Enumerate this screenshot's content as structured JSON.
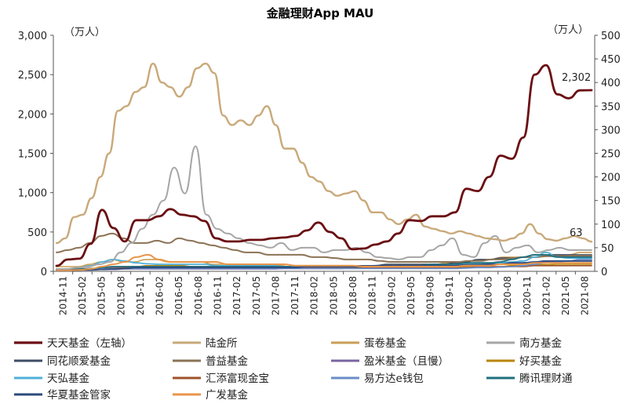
{
  "chart_data": {
    "type": "line",
    "title": "金融理财App MAU",
    "left_unit": "（万人）",
    "right_unit": "（万人）",
    "ylim_left": [
      0,
      3000
    ],
    "ylim_right": [
      0,
      500
    ],
    "yticks_left": [
      "0",
      "500",
      "1,000",
      "1,500",
      "2,000",
      "2,500",
      "3,000"
    ],
    "yticks_right": [
      "0",
      "50",
      "100",
      "150",
      "200",
      "250",
      "300",
      "350",
      "400",
      "450",
      "500"
    ],
    "x_tick_labels": [
      "2014-11",
      "2015-02",
      "2015-05",
      "2015-08",
      "2015-11",
      "2016-02",
      "2016-05",
      "2016-08",
      "2016-11",
      "2017-02",
      "2017-05",
      "2017-08",
      "2017-11",
      "2018-02",
      "2018-05",
      "2018-08",
      "2018-11",
      "2019-02",
      "2019-05",
      "2019-08",
      "2019-11",
      "2020-02",
      "2020-05",
      "2020-08",
      "2020-11",
      "2021-02",
      "2021-05",
      "2021-08"
    ],
    "annotations": [
      {
        "text": "2,302",
        "series": "天天基金（左轴）"
      },
      {
        "text": "63",
        "series": "陆金所"
      }
    ],
    "legend_placement": "bottom",
    "series": [
      {
        "name": "天天基金（左轴）",
        "axis": "left",
        "color": "#6b0f13",
        "width": 2.8,
        "values": [
          70,
          150,
          160,
          350,
          780,
          550,
          380,
          650,
          650,
          700,
          790,
          720,
          700,
          640,
          420,
          380,
          380,
          400,
          400,
          420,
          430,
          450,
          520,
          620,
          500,
          420,
          280,
          290,
          340,
          380,
          480,
          650,
          640,
          700,
          700,
          750,
          1050,
          1020,
          1200,
          1470,
          1430,
          1700,
          2500,
          2620,
          2250,
          2200,
          2300,
          2302
        ]
      },
      {
        "name": "陆金所",
        "axis": "right",
        "color": "#c9a97a",
        "width": 2.4,
        "values": [
          60,
          70,
          115,
          120,
          155,
          200,
          250,
          340,
          350,
          380,
          390,
          440,
          400,
          390,
          370,
          390,
          430,
          440,
          420,
          330,
          310,
          320,
          310,
          330,
          350,
          310,
          260,
          260,
          230,
          200,
          190,
          170,
          160,
          165,
          170,
          150,
          125,
          125,
          110,
          100,
          110,
          120,
          95,
          90,
          85,
          80,
          85,
          80,
          75,
          70,
          68,
          65,
          70,
          80,
          100,
          80,
          68,
          65,
          70,
          75,
          70,
          63
        ]
      },
      {
        "name": "蛋卷基金",
        "axis": "right",
        "color": "#c89f56",
        "width": 1.6,
        "values": [
          10,
          10,
          10,
          15,
          20,
          25,
          20,
          20,
          25,
          25,
          20,
          20,
          20,
          20,
          15,
          15,
          15,
          15,
          15,
          12,
          12,
          10,
          10,
          10,
          10,
          10,
          10,
          10,
          12,
          12,
          15,
          15,
          15,
          15,
          15,
          18,
          20,
          22,
          25,
          25,
          30,
          30,
          30,
          30,
          35,
          35,
          35,
          40,
          40
        ]
      },
      {
        "name": "南方基金",
        "axis": "right",
        "color": "#a6a6a6",
        "width": 2.0,
        "values": [
          5,
          5,
          8,
          10,
          15,
          20,
          40,
          60,
          90,
          120,
          150,
          220,
          165,
          265,
          120,
          90,
          80,
          70,
          60,
          55,
          50,
          60,
          45,
          50,
          50,
          40,
          45,
          45,
          50,
          40,
          30,
          28,
          25,
          30,
          30,
          45,
          55,
          70,
          35,
          30,
          60,
          75,
          40,
          50,
          55,
          40,
          45,
          50,
          45,
          45,
          45
        ]
      },
      {
        "name": "同花顺爱基金",
        "axis": "right",
        "color": "#3e4c66",
        "width": 1.6,
        "values": [
          3,
          3,
          5,
          5,
          8,
          8,
          10,
          10,
          10,
          10,
          10,
          10,
          10,
          10,
          10,
          10,
          10,
          10,
          10,
          10,
          10,
          10,
          10,
          10,
          10,
          12,
          12,
          12,
          12,
          15,
          15,
          15,
          15,
          15,
          15,
          18,
          20,
          25,
          25,
          28,
          28,
          30,
          35,
          35,
          35,
          35,
          35,
          35
        ]
      },
      {
        "name": "普益基金",
        "axis": "right",
        "color": "#8b7355",
        "width": 2.0,
        "values": [
          40,
          45,
          50,
          60,
          75,
          80,
          70,
          60,
          60,
          65,
          60,
          70,
          65,
          60,
          55,
          50,
          45,
          40,
          40,
          35,
          35,
          35,
          35,
          30,
          30,
          28,
          25,
          25,
          25,
          22,
          20,
          20,
          20,
          20,
          20,
          20,
          20,
          22,
          22,
          25,
          25,
          28,
          30,
          30,
          32,
          32,
          33,
          33,
          33
        ]
      },
      {
        "name": "盈米基金（且慢）",
        "axis": "right",
        "color": "#7a64a0",
        "width": 1.6,
        "values": [
          2,
          2,
          3,
          3,
          4,
          4,
          5,
          5,
          5,
          5,
          5,
          5,
          5,
          5,
          5,
          5,
          5,
          5,
          5,
          5,
          6,
          6,
          6,
          6,
          6,
          6,
          7,
          7,
          8,
          8,
          9,
          10,
          10,
          10,
          12,
          12,
          14,
          15,
          15,
          16,
          17,
          18,
          20,
          20,
          22,
          22,
          22,
          22
        ]
      },
      {
        "name": "好买基金",
        "axis": "right",
        "color": "#b8860b",
        "width": 1.6,
        "values": [
          3,
          3,
          4,
          5,
          8,
          10,
          10,
          10,
          12,
          12,
          12,
          12,
          10,
          10,
          10,
          10,
          10,
          10,
          10,
          10,
          10,
          9,
          9,
          9,
          9,
          9,
          9,
          9,
          9,
          9,
          9,
          9,
          9,
          9,
          9,
          9,
          10,
          10,
          10,
          10,
          12,
          12,
          14,
          14,
          15,
          15,
          15,
          15
        ]
      },
      {
        "name": "天弘基金",
        "axis": "right",
        "color": "#4fb0d8",
        "width": 1.8,
        "values": [
          5,
          5,
          8,
          12,
          20,
          25,
          22,
          18,
          16,
          15,
          15,
          15,
          15,
          15,
          12,
          12,
          12,
          12,
          12,
          12,
          10,
          10,
          10,
          10,
          10,
          10,
          10,
          10,
          10,
          10,
          10,
          10,
          10,
          10,
          12,
          12,
          15,
          15,
          15,
          18,
          20,
          22,
          30,
          40,
          30,
          28,
          28,
          28
        ]
      },
      {
        "name": "汇添富现金宝",
        "axis": "right",
        "color": "#a0522d",
        "width": 1.6,
        "values": [
          3,
          3,
          5,
          5,
          8,
          8,
          8,
          8,
          8,
          8,
          8,
          8,
          8,
          8,
          8,
          8,
          8,
          8,
          8,
          8,
          8,
          8,
          8,
          8,
          8,
          8,
          8,
          8,
          8,
          8,
          8,
          8,
          8,
          8,
          8,
          8,
          8,
          10,
          10,
          10,
          10,
          10,
          12,
          12,
          12,
          12,
          12,
          12
        ]
      },
      {
        "name": "易方达e钱包",
        "axis": "right",
        "color": "#6a8ec9",
        "width": 1.8,
        "values": [
          2,
          2,
          3,
          4,
          5,
          6,
          6,
          6,
          6,
          6,
          6,
          6,
          6,
          6,
          6,
          6,
          6,
          6,
          6,
          6,
          6,
          6,
          6,
          6,
          6,
          6,
          6,
          6,
          6,
          6,
          6,
          6,
          6,
          6,
          6,
          6,
          7,
          8,
          8,
          9,
          10,
          12,
          15,
          18,
          20,
          22,
          25,
          25
        ]
      },
      {
        "name": "腾讯理财通",
        "axis": "right",
        "color": "#1f6f7f",
        "width": 1.8,
        "values": [
          3,
          3,
          5,
          6,
          8,
          10,
          10,
          10,
          10,
          10,
          10,
          10,
          10,
          10,
          10,
          10,
          10,
          10,
          10,
          10,
          10,
          10,
          10,
          10,
          10,
          10,
          10,
          10,
          10,
          10,
          12,
          12,
          12,
          15,
          15,
          15,
          18,
          18,
          18,
          20,
          25,
          30,
          35,
          35,
          30,
          30,
          30,
          30
        ]
      },
      {
        "name": "华夏基金管家",
        "axis": "right",
        "color": "#2e4a7d",
        "width": 1.8,
        "values": [
          2,
          2,
          3,
          3,
          4,
          5,
          6,
          8,
          8,
          8,
          8,
          8,
          8,
          8,
          8,
          8,
          8,
          8,
          8,
          8,
          8,
          8,
          10,
          10,
          10,
          10,
          10,
          10,
          12,
          12,
          12,
          12,
          12,
          12,
          12,
          12,
          14,
          14,
          15,
          15,
          18,
          18,
          20,
          22,
          22,
          22,
          22,
          22
        ]
      },
      {
        "name": "广发基金",
        "axis": "right",
        "color": "#e8954a",
        "width": 2.0,
        "values": [
          2,
          2,
          3,
          5,
          10,
          15,
          20,
          30,
          35,
          25,
          20,
          20,
          20,
          20,
          20,
          15,
          15,
          15,
          15,
          15,
          15,
          12,
          12,
          12,
          12,
          12,
          12,
          10,
          10,
          10,
          10,
          10,
          10,
          10,
          10,
          10,
          12,
          12,
          12,
          15,
          15,
          15,
          18,
          18,
          18,
          18,
          18,
          18
        ]
      }
    ]
  }
}
